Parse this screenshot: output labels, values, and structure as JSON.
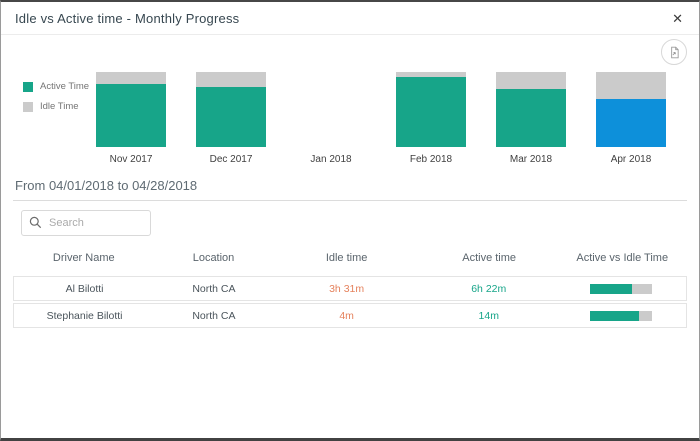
{
  "dialog": {
    "title": "Idle vs Active time - Monthly Progress",
    "close_glyph": "✕"
  },
  "toolbar": {
    "export_icon": "export-report-icon"
  },
  "chart_data": {
    "type": "bar",
    "stacked": true,
    "unit": "percent_of_total_time",
    "categories": [
      "Nov 2017",
      "Dec 2017",
      "Jan 2018",
      "Feb 2018",
      "Mar 2018",
      "Apr 2018"
    ],
    "series": [
      {
        "name": "Active Time",
        "color": "#17a589",
        "values": [
          84,
          80,
          null,
          93,
          77,
          64
        ]
      },
      {
        "name": "Idle Time",
        "color": "#cbcbcb",
        "values": [
          16,
          20,
          null,
          7,
          23,
          36
        ]
      }
    ],
    "highlight": {
      "category": "Apr 2018",
      "series": "Active Time",
      "color": "#0d90da"
    },
    "legend_position": "left",
    "title": "Idle vs Active time - Monthly Progress"
  },
  "filter": {
    "date_range_label": "From 04/01/2018 to 04/28/2018"
  },
  "search": {
    "placeholder": "Search",
    "value": ""
  },
  "table": {
    "columns": [
      "Driver Name",
      "Location",
      "Idle time",
      "Active time",
      "Active vs Idle Time"
    ],
    "rows": [
      {
        "driver": "Al Bilotti",
        "location": "North CA",
        "idle_time": "3h 31m",
        "active_time": "6h 22m",
        "active_pct": 67
      },
      {
        "driver": "Stephanie Bilotti",
        "location": "North CA",
        "idle_time": "4m",
        "active_time": "14m",
        "active_pct": 78
      }
    ]
  },
  "colors": {
    "active": "#17a589",
    "idle": "#cbcbcb",
    "highlight_blue": "#0d90da",
    "idle_text": "#e5825d",
    "active_text": "#17a589"
  }
}
